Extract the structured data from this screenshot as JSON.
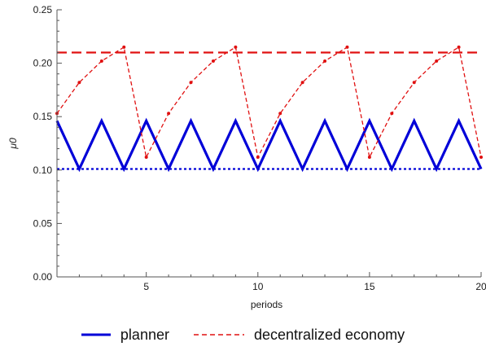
{
  "chart_data": {
    "type": "line",
    "xlabel": "periods",
    "ylabel": "μ0",
    "xlim": [
      1,
      20
    ],
    "ylim": [
      0,
      0.25
    ],
    "x_ticks": [
      5,
      10,
      15,
      20
    ],
    "x_tick_labels": [
      "5",
      "10",
      "15",
      "20"
    ],
    "y_ticks": [
      0,
      0.05,
      0.1,
      0.15,
      0.2,
      0.25
    ],
    "y_tick_labels": [
      "0.00",
      "0.05",
      "0.10",
      "0.15",
      "0.20",
      "0.25"
    ],
    "legend_position": "bottom",
    "series": [
      {
        "name": "planner",
        "color": "#0000d8",
        "style": "solid",
        "x": [
          1,
          2,
          3,
          4,
          5,
          6,
          7,
          8,
          9,
          10,
          11,
          12,
          13,
          14,
          15,
          16,
          17,
          18,
          19,
          20
        ],
        "values": [
          0.146,
          0.101,
          0.146,
          0.101,
          0.146,
          0.101,
          0.146,
          0.101,
          0.146,
          0.101,
          0.146,
          0.101,
          0.146,
          0.101,
          0.146,
          0.101,
          0.146,
          0.101,
          0.146,
          0.101
        ]
      },
      {
        "name": "decentralized economy",
        "color": "#e01010",
        "style": "dashed",
        "x": [
          1,
          2,
          3,
          4,
          5,
          6,
          7,
          8,
          9,
          10,
          11,
          12,
          13,
          14,
          15,
          16,
          17,
          18,
          19,
          20
        ],
        "values": [
          0.153,
          0.182,
          0.202,
          0.215,
          0.112,
          0.153,
          0.182,
          0.202,
          0.215,
          0.112,
          0.153,
          0.182,
          0.202,
          0.215,
          0.112,
          0.153,
          0.182,
          0.202,
          0.215,
          0.112
        ]
      }
    ],
    "reference_lines": [
      {
        "y": 0.101,
        "color": "#0000d8",
        "style": "dotted"
      },
      {
        "y": 0.21,
        "color": "#e01010",
        "style": "long-dashed"
      }
    ]
  }
}
